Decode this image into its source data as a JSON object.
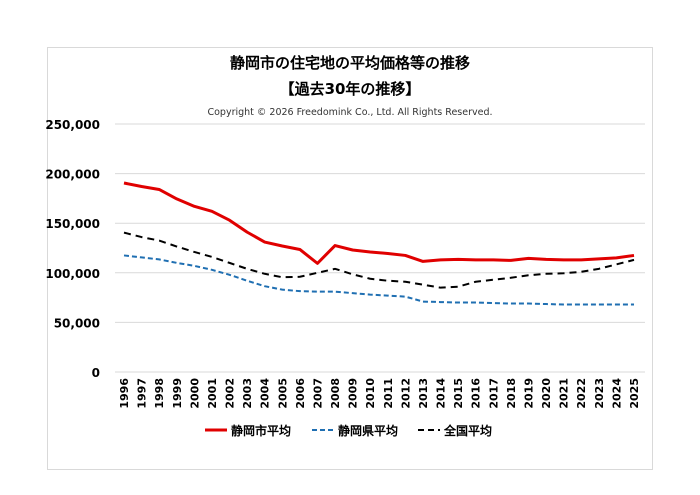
{
  "chart_data": {
    "type": "line",
    "title": "静岡市の住宅地の平均価格等の推移",
    "subtitle": "【過去30年の推移】",
    "copyright": "Copyright © 2026 Freedomink Co., Ltd. All Rights Reserved.",
    "xlabel": "",
    "ylabel": "",
    "ylim": [
      0,
      250000
    ],
    "yticks": [
      "0",
      "50,000",
      "100,000",
      "150,000",
      "200,000",
      "250,000"
    ],
    "grid": true,
    "legend_position": "bottom",
    "categories": [
      "1996",
      "1997",
      "1998",
      "1999",
      "2000",
      "2001",
      "2002",
      "2003",
      "2004",
      "2005",
      "2006",
      "2007",
      "2008",
      "2009",
      "2010",
      "2011",
      "2012",
      "2013",
      "2014",
      "2015",
      "2016",
      "2017",
      "2018",
      "2019",
      "2020",
      "2021",
      "2022",
      "2023",
      "2024",
      "2025"
    ],
    "series": [
      {
        "name": "静岡市平均",
        "color": "#e00000",
        "style": "solid",
        "values": [
          190500,
          187000,
          184000,
          174500,
          167000,
          162000,
          153000,
          141000,
          131000,
          127000,
          123500,
          109500,
          127500,
          123000,
          121000,
          119500,
          117500,
          111500,
          113000,
          113500,
          113000,
          113000,
          112500,
          114500,
          113500,
          113000,
          113000,
          114000,
          115000,
          117500
        ]
      },
      {
        "name": "静岡県平均",
        "color": "#1f6fb2",
        "style": "dashed",
        "values": [
          117500,
          115500,
          113500,
          110000,
          107000,
          103000,
          98000,
          92000,
          86500,
          83000,
          81500,
          81000,
          81000,
          79500,
          78000,
          77000,
          76000,
          71000,
          70500,
          70000,
          70000,
          69500,
          69000,
          69000,
          68500,
          68000,
          68000,
          68000,
          68000,
          68000
        ]
      },
      {
        "name": "全国平均",
        "color": "#000000",
        "style": "dashed",
        "values": [
          140500,
          136000,
          132500,
          126500,
          121000,
          116000,
          110000,
          104000,
          99000,
          95500,
          96000,
          100000,
          104000,
          98500,
          94000,
          92000,
          91000,
          88000,
          85000,
          86000,
          91000,
          93000,
          95000,
          97500,
          99000,
          99500,
          101000,
          104000,
          108500,
          113000
        ]
      }
    ]
  }
}
